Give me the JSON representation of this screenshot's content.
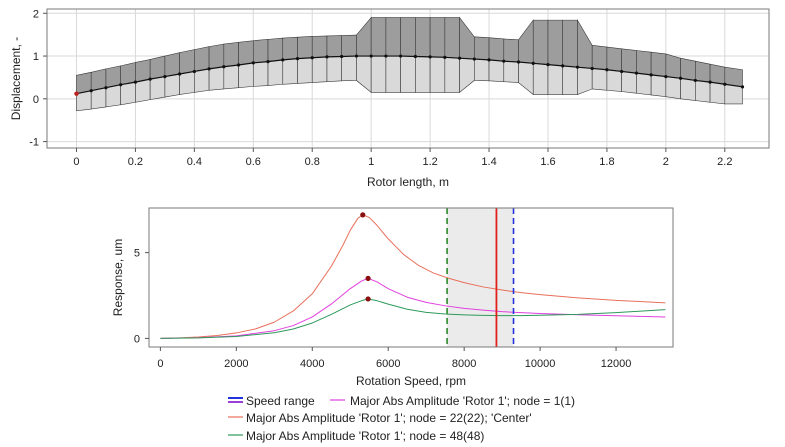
{
  "chart_data": [
    {
      "type": "line",
      "title": "",
      "xlabel": "Rotor length, m",
      "ylabel": "Displacement, -",
      "xlim": [
        -0.1,
        2.35
      ],
      "ylim": [
        -1.15,
        2.1
      ],
      "xticks": [
        0,
        0.2,
        0.4,
        0.6,
        0.8,
        1,
        1.2,
        1.4,
        1.6,
        1.8,
        2,
        2.2
      ],
      "xtick_labels": [
        "0",
        "0.2",
        "0.4",
        "0.6",
        "0.8",
        "1",
        "1.2",
        "1.4",
        "1.6",
        "1.8",
        "2",
        "2.2"
      ],
      "yticks": [
        -1,
        0,
        1,
        2
      ],
      "ytick_labels": [
        "-1",
        "0",
        "1",
        "2"
      ],
      "grid": true,
      "mode_shape": {
        "x": [
          0,
          0.05,
          0.1,
          0.15,
          0.2,
          0.25,
          0.3,
          0.35,
          0.4,
          0.45,
          0.5,
          0.55,
          0.6,
          0.65,
          0.7,
          0.75,
          0.8,
          0.85,
          0.9,
          0.95,
          1,
          1.05,
          1.1,
          1.15,
          1.2,
          1.25,
          1.3,
          1.35,
          1.4,
          1.45,
          1.5,
          1.55,
          1.6,
          1.65,
          1.7,
          1.75,
          1.8,
          1.85,
          1.9,
          1.95,
          2,
          2.05,
          2.1,
          2.15,
          2.2,
          2.26
        ],
        "y": [
          0.12,
          0.19,
          0.26,
          0.33,
          0.39,
          0.46,
          0.52,
          0.58,
          0.64,
          0.7,
          0.75,
          0.79,
          0.84,
          0.87,
          0.91,
          0.94,
          0.96,
          0.98,
          0.99,
          1.0,
          1.0,
          1.0,
          1.0,
          0.99,
          0.98,
          0.97,
          0.95,
          0.93,
          0.91,
          0.88,
          0.86,
          0.83,
          0.8,
          0.77,
          0.74,
          0.71,
          0.68,
          0.64,
          0.6,
          0.56,
          0.52,
          0.48,
          0.43,
          0.39,
          0.34,
          0.28
        ],
        "upper": [
          0.55,
          0.62,
          0.7,
          0.77,
          0.85,
          0.92,
          1.0,
          1.08,
          1.15,
          1.22,
          1.28,
          1.32,
          1.36,
          1.39,
          1.42,
          1.44,
          1.46,
          1.47,
          1.48,
          1.49,
          1.9,
          1.9,
          1.9,
          1.9,
          1.9,
          1.9,
          1.9,
          1.45,
          1.43,
          1.4,
          1.38,
          1.84,
          1.84,
          1.84,
          1.84,
          1.25,
          1.21,
          1.17,
          1.13,
          1.09,
          1.05,
          0.95,
          0.88,
          0.81,
          0.74,
          0.68
        ],
        "lower": [
          -0.28,
          -0.24,
          -0.19,
          -0.14,
          -0.08,
          -0.02,
          0.04,
          0.1,
          0.15,
          0.2,
          0.23,
          0.26,
          0.29,
          0.31,
          0.34,
          0.36,
          0.38,
          0.4,
          0.42,
          0.43,
          0.15,
          0.15,
          0.15,
          0.15,
          0.15,
          0.15,
          0.15,
          0.43,
          0.42,
          0.4,
          0.38,
          0.1,
          0.1,
          0.1,
          0.1,
          0.23,
          0.2,
          0.17,
          0.13,
          0.09,
          0.05,
          0.0,
          -0.04,
          -0.08,
          -0.12,
          -0.12
        ],
        "bearing_node_x": 0,
        "bearing_node_y": 0.12
      }
    },
    {
      "type": "line",
      "title": "",
      "xlabel": "Rotation Speed, rpm",
      "ylabel": "Response, um",
      "xlim": [
        -300,
        13500
      ],
      "ylim": [
        -0.5,
        7.6
      ],
      "xticks": [
        0,
        2000,
        4000,
        6000,
        8000,
        10000,
        12000
      ],
      "xtick_labels": [
        "0",
        "2000",
        "4000",
        "6000",
        "8000",
        "10000",
        "12000"
      ],
      "yticks": [
        0,
        5
      ],
      "ytick_labels": [
        "0",
        "5"
      ],
      "speed_range": [
        7550,
        9300
      ],
      "speed_range_lines": {
        "left_color": "#2a8a2a",
        "right_color": "#2233dd"
      },
      "operating_speed": 8850,
      "operating_speed_color": "#e0201a",
      "series": [
        {
          "name": "Major Abs Amplitude 'Rotor 1'; node = 22(22); 'Center'",
          "color": "#e8705a",
          "x": [
            0,
            500,
            1000,
            1500,
            2000,
            2500,
            3000,
            3500,
            4000,
            4500,
            4800,
            5000,
            5200,
            5330,
            5500,
            5700,
            6000,
            6400,
            6800,
            7200,
            7600,
            8000,
            8500,
            9000,
            9500,
            10000,
            11000,
            12000,
            13300
          ],
          "y": [
            0,
            0.03,
            0.08,
            0.17,
            0.32,
            0.55,
            0.95,
            1.6,
            2.6,
            4.2,
            5.4,
            6.3,
            7.0,
            7.2,
            7.05,
            6.6,
            5.8,
            4.9,
            4.25,
            3.8,
            3.5,
            3.25,
            3.0,
            2.82,
            2.67,
            2.55,
            2.36,
            2.22,
            2.07
          ],
          "peak": {
            "x": 5330,
            "y": 7.2
          }
        },
        {
          "name": "Major Abs Amplitude 'Rotor 1'; node = 1(1)",
          "color": "#e040e0",
          "x": [
            0,
            1000,
            2000,
            3000,
            3500,
            4000,
            4500,
            5000,
            5300,
            5470,
            5700,
            6000,
            6500,
            7000,
            7500,
            8000,
            8500,
            9000,
            9500,
            10000,
            11000,
            12000,
            13300
          ],
          "y": [
            0,
            0.04,
            0.15,
            0.45,
            0.75,
            1.25,
            2.0,
            2.9,
            3.35,
            3.5,
            3.3,
            2.9,
            2.4,
            2.1,
            1.9,
            1.75,
            1.65,
            1.56,
            1.5,
            1.45,
            1.38,
            1.32,
            1.25
          ],
          "peak": {
            "x": 5470,
            "y": 3.5
          }
        },
        {
          "name": "Major Abs Amplitude 'Rotor 1'; node = 48(48)",
          "color": "#2e9a5a",
          "x": [
            0,
            1000,
            2000,
            3000,
            3500,
            4000,
            4500,
            5000,
            5300,
            5470,
            5700,
            6000,
            6500,
            7000,
            7500,
            8000,
            8500,
            9000,
            9500,
            10000,
            11000,
            12000,
            13300
          ],
          "y": [
            0,
            0.03,
            0.11,
            0.33,
            0.55,
            0.9,
            1.4,
            1.95,
            2.2,
            2.3,
            2.2,
            2.0,
            1.7,
            1.52,
            1.42,
            1.37,
            1.34,
            1.33,
            1.33,
            1.35,
            1.4,
            1.5,
            1.68
          ],
          "peak": {
            "x": 5470,
            "y": 2.3
          }
        }
      ],
      "legend": [
        {
          "label": "Speed range",
          "style": "double-bar",
          "colors": [
            "#2233dd",
            "#9b3fd8"
          ]
        },
        {
          "label": "Major Abs Amplitude 'Rotor 1'; node = 1(1)",
          "color": "#e040e0"
        },
        {
          "label": "Major Abs Amplitude 'Rotor 1'; node = 22(22); 'Center'",
          "color": "#e8705a"
        },
        {
          "label": "Major Abs Amplitude 'Rotor 1'; node = 48(48)",
          "color": "#2e9a5a"
        }
      ]
    }
  ]
}
